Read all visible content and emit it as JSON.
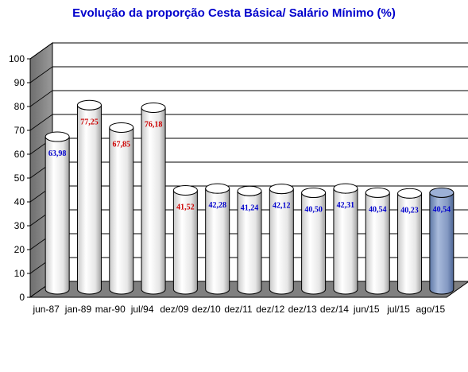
{
  "chart_data": {
    "type": "bar",
    "title": "Evolução da proporção Cesta Básica/ Salário Mínimo (%)",
    "xlabel": "",
    "ylabel": "",
    "ylim": [
      0,
      100
    ],
    "y_ticks": [
      "0",
      "10",
      "20",
      "30",
      "40",
      "50",
      "60",
      "70",
      "80",
      "90",
      "100"
    ],
    "grid": true,
    "legend": "none",
    "categories": [
      "jun-87",
      "jan-89",
      "mar-90",
      "jul/94",
      "dez/09",
      "dez/10",
      "dez/11",
      "dez/12",
      "dez/13",
      "dez/14",
      "jun/15",
      "jul/15",
      "ago/15"
    ],
    "values": [
      63.98,
      77.25,
      67.85,
      76.18,
      41.52,
      42.28,
      41.24,
      42.12,
      40.5,
      42.31,
      40.54,
      40.23,
      40.54
    ],
    "data_labels": [
      "63,98",
      "77,25",
      "67,85",
      "76,18",
      "41,52",
      "42,28",
      "41,24",
      "42,12",
      "40,50",
      "42,31",
      "40,54",
      "40,23",
      "40,54"
    ],
    "label_colors": [
      "#0000cc",
      "#cc0000",
      "#cc0000",
      "#cc0000",
      "#cc0000",
      "#0000cc",
      "#0000cc",
      "#0000cc",
      "#0000cc",
      "#0000cc",
      "#0000cc",
      "#0000cc",
      "#0000cc"
    ],
    "bar_colors": [
      "#ffffff",
      "#ffffff",
      "#ffffff",
      "#ffffff",
      "#ffffff",
      "#ffffff",
      "#ffffff",
      "#ffffff",
      "#ffffff",
      "#ffffff",
      "#ffffff",
      "#ffffff",
      "#8da2c8"
    ],
    "bar_shape": "cylinder",
    "floor_color": "#808080",
    "wall_color": "#808080"
  }
}
